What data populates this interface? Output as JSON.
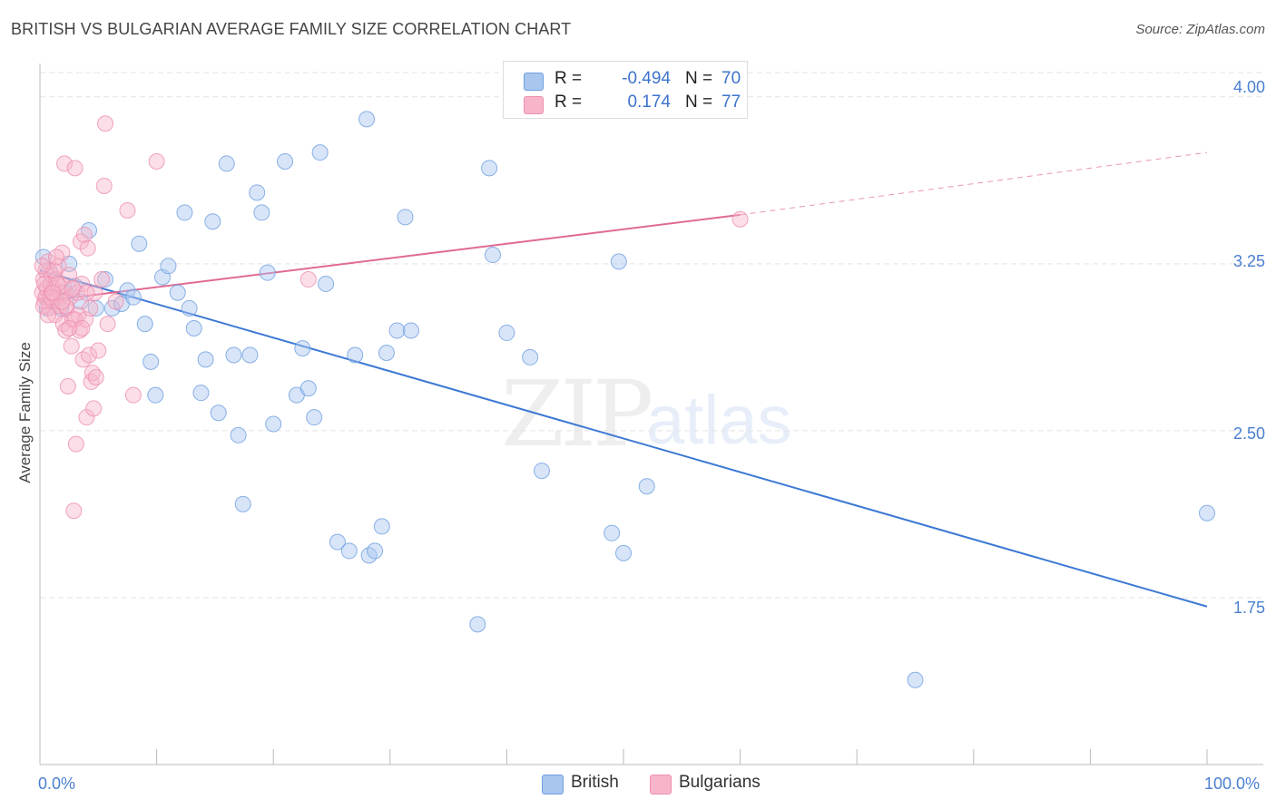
{
  "header": {
    "title": "BRITISH VS BULGARIAN AVERAGE FAMILY SIZE CORRELATION CHART",
    "source": "Source: ZipAtlas.com"
  },
  "watermark": {
    "zip": "ZIP",
    "atlas": "atlas"
  },
  "legend": {
    "british": {
      "r_label": "R =",
      "r_value": "-0.494",
      "n_label": "N =",
      "n_value": "70"
    },
    "bulgarians": {
      "r_label": "R =",
      "r_value": "0.174",
      "n_label": "N =",
      "n_value": "77"
    }
  },
  "colors": {
    "british_fill": "#a9c6ef",
    "british_stroke": "#6e9fe0",
    "british_line": "#3b78d4",
    "bulgarian_fill": "#f7b5c9",
    "bulgarian_stroke": "#ee8fb0",
    "bulgarian_line": "#e06a93",
    "grid": "#e3e3e3",
    "axis_text": "#4a7fd1"
  },
  "chart_data": {
    "type": "scatter",
    "title": "BRITISH VS BULGARIAN AVERAGE FAMILY SIZE CORRELATION CHART",
    "xlabel": "",
    "ylabel": "Average Family Size",
    "xlim": [
      0,
      100
    ],
    "ylim": [
      1.0,
      4.15
    ],
    "yticks": [
      1.75,
      2.5,
      3.25,
      4.0
    ],
    "ytick_labels": [
      "1.75",
      "2.50",
      "3.25",
      "4.00"
    ],
    "xtick_labels": [
      "0.0%",
      "100.0%"
    ],
    "grid": true,
    "legend_position": "top-center",
    "series": [
      {
        "name": "British",
        "r": -0.494,
        "n": 70,
        "trend": {
          "x0": 0,
          "y0": 3.22,
          "x1": 100,
          "y1": 1.71
        },
        "points": [
          [
            0.3,
            3.28
          ],
          [
            0.8,
            3.22
          ],
          [
            1.2,
            3.1
          ],
          [
            1.8,
            3.05
          ],
          [
            2.5,
            3.25
          ],
          [
            3.0,
            3.15
          ],
          [
            4.2,
            3.4
          ],
          [
            4.8,
            3.05
          ],
          [
            5.6,
            3.18
          ],
          [
            6.2,
            3.05
          ],
          [
            7.0,
            3.07
          ],
          [
            7.5,
            3.13
          ],
          [
            8.0,
            3.1
          ],
          [
            8.5,
            3.34
          ],
          [
            9.0,
            2.98
          ],
          [
            9.5,
            2.81
          ],
          [
            9.9,
            2.66
          ],
          [
            10.5,
            3.19
          ],
          [
            11.0,
            3.24
          ],
          [
            11.8,
            3.12
          ],
          [
            12.4,
            3.48
          ],
          [
            12.8,
            3.05
          ],
          [
            13.2,
            2.96
          ],
          [
            13.8,
            2.67
          ],
          [
            14.2,
            2.82
          ],
          [
            14.8,
            3.44
          ],
          [
            15.3,
            2.58
          ],
          [
            16.0,
            3.7
          ],
          [
            16.6,
            2.84
          ],
          [
            17.0,
            2.48
          ],
          [
            17.4,
            2.17
          ],
          [
            18.0,
            2.84
          ],
          [
            18.6,
            3.57
          ],
          [
            19.0,
            3.48
          ],
          [
            19.5,
            3.21
          ],
          [
            20.0,
            2.53
          ],
          [
            21.0,
            3.71
          ],
          [
            22.0,
            2.66
          ],
          [
            22.5,
            2.87
          ],
          [
            23.0,
            2.69
          ],
          [
            23.5,
            2.56
          ],
          [
            24.0,
            3.75
          ],
          [
            24.5,
            3.16
          ],
          [
            25.5,
            2.0
          ],
          [
            26.5,
            1.96
          ],
          [
            27.0,
            2.84
          ],
          [
            28.0,
            3.9
          ],
          [
            28.2,
            1.94
          ],
          [
            28.7,
            1.96
          ],
          [
            29.3,
            2.07
          ],
          [
            29.7,
            2.85
          ],
          [
            30.6,
            2.95
          ],
          [
            31.3,
            3.46
          ],
          [
            31.8,
            2.95
          ],
          [
            37.5,
            1.63
          ],
          [
            38.5,
            3.68
          ],
          [
            38.8,
            3.29
          ],
          [
            40.0,
            2.94
          ],
          [
            42.0,
            2.83
          ],
          [
            43.0,
            2.32
          ],
          [
            49.0,
            2.04
          ],
          [
            49.6,
            3.26
          ],
          [
            50.0,
            1.95
          ],
          [
            52.0,
            2.25
          ],
          [
            75.0,
            1.38
          ],
          [
            100.0,
            2.13
          ],
          [
            1.0,
            3.15
          ],
          [
            2.2,
            3.12
          ],
          [
            3.5,
            3.08
          ],
          [
            0.6,
            3.05
          ]
        ]
      },
      {
        "name": "Bulgarians",
        "r": 0.174,
        "n": 77,
        "trend": {
          "x0": 0,
          "y0": 3.08,
          "x1": 60,
          "y1": 3.47,
          "dashed_to": {
            "x": 100,
            "y": 3.75
          }
        },
        "points": [
          [
            0.2,
            3.12
          ],
          [
            0.3,
            3.18
          ],
          [
            0.4,
            3.08
          ],
          [
            0.5,
            3.22
          ],
          [
            0.5,
            3.1
          ],
          [
            0.6,
            3.14
          ],
          [
            0.7,
            3.26
          ],
          [
            0.8,
            3.05
          ],
          [
            0.9,
            3.16
          ],
          [
            1.0,
            3.12
          ],
          [
            1.0,
            3.2
          ],
          [
            1.1,
            3.08
          ],
          [
            1.2,
            3.14
          ],
          [
            1.3,
            3.02
          ],
          [
            1.4,
            3.18
          ],
          [
            1.5,
            3.1
          ],
          [
            1.6,
            3.24
          ],
          [
            1.7,
            3.06
          ],
          [
            1.8,
            3.12
          ],
          [
            1.9,
            3.3
          ],
          [
            2.0,
            2.98
          ],
          [
            2.0,
            3.15
          ],
          [
            2.1,
            3.7
          ],
          [
            2.2,
            2.95
          ],
          [
            2.3,
            3.05
          ],
          [
            2.4,
            2.7
          ],
          [
            2.5,
            3.2
          ],
          [
            2.6,
            3.1
          ],
          [
            2.7,
            2.88
          ],
          [
            2.8,
            3.0
          ],
          [
            2.9,
            2.14
          ],
          [
            3.0,
            3.68
          ],
          [
            3.1,
            2.44
          ],
          [
            3.2,
            3.12
          ],
          [
            3.3,
            3.02
          ],
          [
            3.4,
            2.95
          ],
          [
            3.5,
            3.35
          ],
          [
            3.6,
            3.16
          ],
          [
            3.7,
            2.82
          ],
          [
            3.8,
            3.38
          ],
          [
            3.9,
            3.0
          ],
          [
            4.0,
            2.56
          ],
          [
            4.1,
            3.32
          ],
          [
            4.2,
            2.84
          ],
          [
            4.3,
            3.05
          ],
          [
            4.4,
            2.72
          ],
          [
            4.5,
            2.76
          ],
          [
            4.6,
            2.6
          ],
          [
            4.7,
            3.12
          ],
          [
            4.8,
            2.74
          ],
          [
            5.0,
            2.86
          ],
          [
            5.3,
            3.18
          ],
          [
            5.5,
            3.6
          ],
          [
            5.6,
            3.88
          ],
          [
            5.8,
            2.98
          ],
          [
            6.5,
            3.08
          ],
          [
            7.5,
            3.49
          ],
          [
            8.0,
            2.66
          ],
          [
            10.0,
            3.71
          ],
          [
            23.0,
            3.18
          ],
          [
            60.0,
            3.45
          ],
          [
            0.3,
            3.06
          ],
          [
            0.9,
            3.1
          ],
          [
            1.5,
            3.16
          ],
          [
            2.2,
            3.06
          ],
          [
            2.8,
            3.14
          ],
          [
            0.4,
            3.16
          ],
          [
            1.2,
            3.22
          ],
          [
            1.9,
            3.08
          ],
          [
            3.0,
            3.0
          ],
          [
            3.6,
            2.96
          ],
          [
            0.7,
            3.02
          ],
          [
            1.4,
            3.28
          ],
          [
            2.5,
            2.96
          ],
          [
            0.2,
            3.24
          ],
          [
            1.1,
            3.12
          ],
          [
            4.0,
            3.12
          ]
        ]
      }
    ]
  },
  "bottom_legend": [
    {
      "label": "British"
    },
    {
      "label": "Bulgarians"
    }
  ]
}
